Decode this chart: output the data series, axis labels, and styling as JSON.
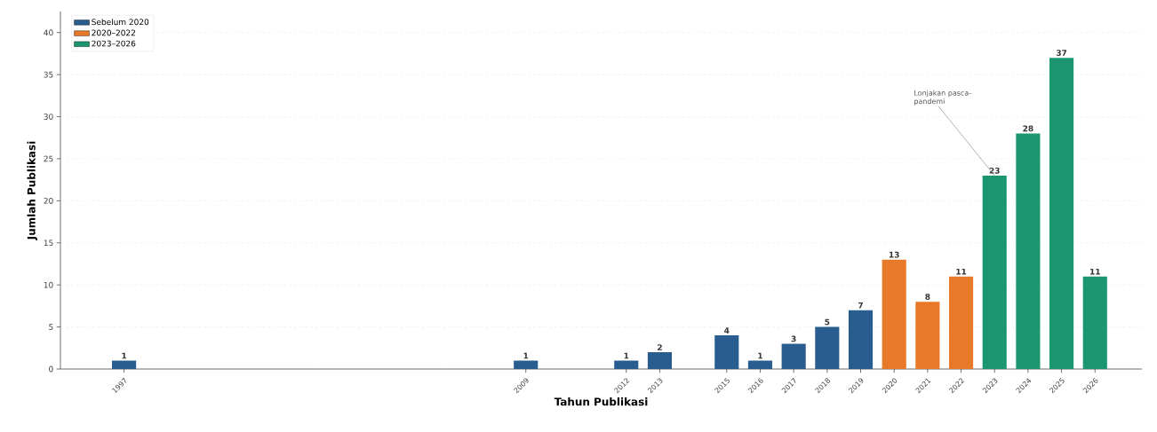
{
  "chart_data": {
    "type": "bar",
    "xlabel": "Tahun Publikasi",
    "ylabel": "Jumlah Publikasi",
    "series": [
      {
        "name": "Sebelum 2020",
        "color": "#2a5d8f",
        "x": [
          1997,
          2009,
          2012,
          2013,
          2015,
          2016,
          2017,
          2018,
          2019
        ],
        "values": [
          1,
          1,
          1,
          2,
          4,
          1,
          3,
          5,
          7
        ]
      },
      {
        "name": "2020–2022",
        "color": "#e8792a",
        "x": [
          2020,
          2021,
          2022
        ],
        "values": [
          13,
          8,
          11
        ]
      },
      {
        "name": "2023–2026",
        "color": "#1b9670",
        "x": [
          2023,
          2024,
          2025,
          2026
        ],
        "values": [
          23,
          28,
          37,
          11
        ]
      }
    ],
    "xlim": [
      1995.1,
      2027.4
    ],
    "ylim": [
      0,
      42.5
    ],
    "xticks": [
      1997,
      2009,
      2012,
      2013,
      2015,
      2016,
      2017,
      2018,
      2019,
      2020,
      2021,
      2022,
      2023,
      2024,
      2025,
      2026
    ],
    "yticks": [
      0,
      5,
      10,
      15,
      20,
      25,
      30,
      35,
      40
    ],
    "grid": "y",
    "legend": "top left",
    "data_labels": true,
    "annotations": [
      {
        "text": "Lonjakan pasca-pandemi",
        "x": 2023,
        "y": 23
      }
    ]
  }
}
